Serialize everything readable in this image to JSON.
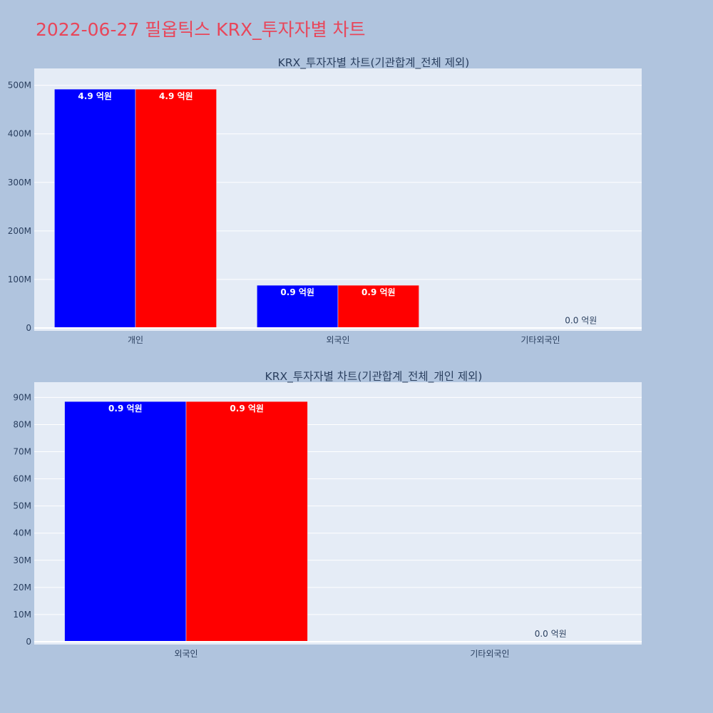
{
  "page_title": "2022-06-27 필옵틱스 KRX_투자자별 차트",
  "colors": {
    "series_1": "#0000ff",
    "series_2": "#ff0000",
    "plot_bg": "#e5ecf6",
    "page_bg": "#b0c4de",
    "title": "#e8465a"
  },
  "chart_data": [
    {
      "type": "bar",
      "title": "KRX_투자자별 차트(기관합계_전체 제외)",
      "categories": [
        "개인",
        "외국인",
        "기타외국인"
      ],
      "series": [
        {
          "values": [
            492000000,
            88000000,
            0
          ],
          "labels": [
            "4.9 억원",
            "0.9 억원",
            ""
          ],
          "color": "#0000ff"
        },
        {
          "values": [
            492000000,
            88000000,
            1000000
          ],
          "labels": [
            "4.9 억원",
            "0.9 억원",
            "0.0 억원"
          ],
          "color": "#ff0000"
        }
      ],
      "ylim": [
        0,
        520000000
      ],
      "yticks": [
        0,
        100000000,
        200000000,
        300000000,
        400000000,
        500000000
      ],
      "ytick_labels": [
        "0",
        "100M",
        "200M",
        "300M",
        "400M",
        "500M"
      ],
      "grid": true
    },
    {
      "type": "bar",
      "title": "KRX_투자자별 차트(기관합계_전체_개인 제외)",
      "categories": [
        "외국인",
        "기타외국인"
      ],
      "series": [
        {
          "values": [
            88500000,
            0
          ],
          "labels": [
            "0.9 억원",
            ""
          ],
          "color": "#0000ff"
        },
        {
          "values": [
            88500000,
            200000
          ],
          "labels": [
            "0.9 억원",
            "0.0 억원"
          ],
          "color": "#ff0000"
        }
      ],
      "ylim": [
        0,
        93000000
      ],
      "yticks": [
        0,
        10000000,
        20000000,
        30000000,
        40000000,
        50000000,
        60000000,
        70000000,
        80000000,
        90000000
      ],
      "ytick_labels": [
        "0",
        "10M",
        "20M",
        "30M",
        "40M",
        "50M",
        "60M",
        "70M",
        "80M",
        "90M"
      ],
      "grid": true
    }
  ]
}
